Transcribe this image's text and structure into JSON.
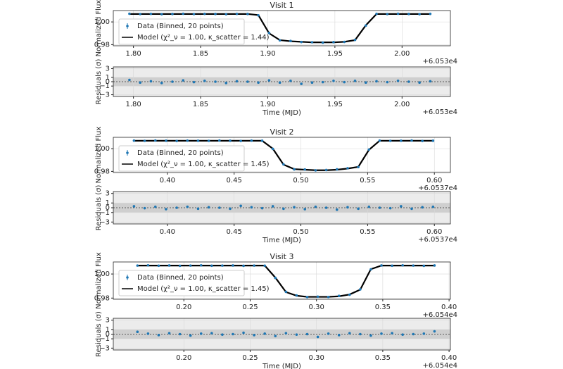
{
  "chart_data": [
    {
      "type": "line",
      "title": "Visit 1",
      "ylabel": "Normalized Flux",
      "x_offset_label": "+6.053e4",
      "legend": "upper left",
      "grid": true,
      "x": [
        1.797,
        1.805,
        1.813,
        1.821,
        1.829,
        1.837,
        1.845,
        1.853,
        1.861,
        1.869,
        1.877,
        1.885,
        1.893,
        1.901,
        1.909,
        1.917,
        1.925,
        1.933,
        1.941,
        1.949,
        1.957,
        1.965,
        1.973,
        1.981,
        1.989,
        1.997,
        2.005,
        2.013,
        2.021
      ],
      "series": [
        {
          "name": "Data (Binned, 20 points)",
          "color": "#1f77b4",
          "values": [
            1.0072,
            1.0069,
            1.0071,
            1.0068,
            1.007,
            1.0072,
            1.0069,
            1.0071,
            1.007,
            1.0068,
            1.0071,
            1.007,
            1.0058,
            0.9903,
            0.9838,
            0.9832,
            0.9823,
            0.9821,
            0.9818,
            0.9822,
            0.9824,
            0.9842,
            0.9968,
            1.0071,
            1.0069,
            1.0072,
            1.007,
            1.0068,
            1.0071
          ]
        },
        {
          "name": "Model (χ²_ν = 1.00, κ_scatter = 1.44)",
          "color": "#000000",
          "values": [
            1.007,
            1.007,
            1.007,
            1.007,
            1.007,
            1.007,
            1.007,
            1.007,
            1.007,
            1.007,
            1.007,
            1.007,
            1.006,
            0.99,
            0.984,
            0.983,
            0.9825,
            0.982,
            0.982,
            0.982,
            0.9825,
            0.984,
            0.997,
            1.007,
            1.007,
            1.007,
            1.007,
            1.007,
            1.007
          ]
        }
      ],
      "xlim": [
        1.785,
        2.036
      ],
      "xticks": [
        {
          "value": 1.8,
          "label": "1.80"
        },
        {
          "value": 1.85,
          "label": "1.85"
        },
        {
          "value": 1.9,
          "label": "1.90"
        },
        {
          "value": 1.95,
          "label": "1.95"
        },
        {
          "value": 2.0,
          "label": "2.00"
        }
      ],
      "ylim": [
        0.979,
        1.01
      ],
      "yticks": [
        {
          "value": 0.98,
          "label": "0.98"
        },
        {
          "value": 1.0,
          "label": "1.00"
        }
      ]
    },
    {
      "type": "scatter",
      "xlabel": "Time (MJD)",
      "ylabel": "Residuals (σ)",
      "x_offset_label": "+6.053e4",
      "color": "#1f77b4",
      "band": [
        -1,
        1
      ],
      "reference_line": 0,
      "grid": true,
      "x": [
        1.797,
        1.805,
        1.813,
        1.821,
        1.829,
        1.837,
        1.845,
        1.853,
        1.861,
        1.869,
        1.877,
        1.885,
        1.893,
        1.901,
        1.909,
        1.917,
        1.925,
        1.933,
        1.941,
        1.949,
        1.957,
        1.965,
        1.973,
        1.981,
        1.989,
        1.997,
        2.005,
        2.013,
        2.021
      ],
      "values": [
        0.4,
        -0.2,
        0.1,
        -0.3,
        0.0,
        0.3,
        -0.1,
        0.2,
        0.0,
        -0.3,
        0.1,
        0.0,
        -0.2,
        0.3,
        -0.2,
        0.2,
        -0.5,
        -0.2,
        -0.1,
        0.2,
        -0.1,
        0.2,
        -0.2,
        0.1,
        -0.1,
        0.2,
        0.0,
        -0.2,
        0.1
      ],
      "xlim": [
        1.785,
        2.036
      ],
      "xticks": [
        {
          "value": 1.8,
          "label": "1.80"
        },
        {
          "value": 1.85,
          "label": "1.85"
        },
        {
          "value": 1.9,
          "label": "1.90"
        },
        {
          "value": 1.95,
          "label": "1.95"
        },
        {
          "value": 2.0,
          "label": "2.00"
        }
      ],
      "ylim": [
        -3.4,
        3.4
      ],
      "yticks": [
        {
          "value": -3,
          "label": "−3"
        },
        {
          "value": -1,
          "label": "−1"
        },
        0,
        1,
        3
      ]
    },
    {
      "type": "line",
      "title": "Visit 2",
      "ylabel": "Normalized Flux",
      "x_offset_label": "+6.0537e4",
      "legend": "upper left",
      "grid": true,
      "x": [
        0.375,
        0.383,
        0.391,
        0.399,
        0.407,
        0.415,
        0.423,
        0.431,
        0.439,
        0.447,
        0.455,
        0.463,
        0.471,
        0.479,
        0.487,
        0.495,
        0.503,
        0.511,
        0.519,
        0.527,
        0.535,
        0.543,
        0.551,
        0.559,
        0.567,
        0.575,
        0.583,
        0.591,
        0.599
      ],
      "series": [
        {
          "name": "Data (Binned, 20 points)",
          "color": "#1f77b4",
          "values": [
            1.0071,
            1.0069,
            1.0072,
            1.007,
            1.0068,
            1.0071,
            1.007,
            1.0069,
            1.0072,
            1.007,
            1.0068,
            1.0071,
            1.007,
            0.9998,
            0.9862,
            0.9818,
            0.9817,
            0.9809,
            0.9812,
            0.9818,
            0.9828,
            0.9838,
            0.9992,
            1.0071,
            1.0069,
            1.007,
            1.0072,
            1.0068,
            1.007
          ]
        },
        {
          "name": "Model (χ²_ν = 1.00, κ_scatter = 1.45)",
          "color": "#000000",
          "values": [
            1.007,
            1.007,
            1.007,
            1.007,
            1.007,
            1.007,
            1.007,
            1.007,
            1.007,
            1.007,
            1.007,
            1.007,
            1.007,
            1.0,
            0.986,
            0.982,
            0.9815,
            0.981,
            0.981,
            0.9815,
            0.9825,
            0.984,
            0.999,
            1.007,
            1.007,
            1.007,
            1.007,
            1.007,
            1.007
          ]
        }
      ],
      "xlim": [
        0.3595,
        0.612
      ],
      "xticks": [
        {
          "value": 0.4,
          "label": "0.40"
        },
        {
          "value": 0.45,
          "label": "0.45"
        },
        {
          "value": 0.5,
          "label": "0.50"
        },
        {
          "value": 0.55,
          "label": "0.55"
        },
        {
          "value": 0.6,
          "label": "0.60"
        }
      ],
      "ylim": [
        0.979,
        1.01
      ],
      "yticks": [
        {
          "value": 0.98,
          "label": "0.98"
        },
        {
          "value": 1.0,
          "label": "1.00"
        }
      ]
    },
    {
      "type": "scatter",
      "xlabel": "Time (MJD)",
      "ylabel": "Residuals (σ)",
      "x_offset_label": "+6.0537e4",
      "color": "#1f77b4",
      "band": [
        -1,
        1
      ],
      "reference_line": 0,
      "grid": true,
      "x": [
        0.375,
        0.383,
        0.391,
        0.399,
        0.407,
        0.415,
        0.423,
        0.431,
        0.439,
        0.447,
        0.455,
        0.463,
        0.471,
        0.479,
        0.487,
        0.495,
        0.503,
        0.511,
        0.519,
        0.527,
        0.535,
        0.543,
        0.551,
        0.559,
        0.567,
        0.575,
        0.583,
        0.591,
        0.599
      ],
      "values": [
        0.3,
        -0.1,
        0.2,
        -0.3,
        0.0,
        0.2,
        -0.2,
        0.1,
        0.0,
        -0.2,
        0.4,
        0.1,
        -0.1,
        0.3,
        -0.2,
        0.1,
        -0.3,
        0.2,
        0.0,
        -0.4,
        0.1,
        -0.2,
        0.2,
        0.0,
        -0.1,
        0.3,
        -0.2,
        0.1,
        0.2
      ],
      "xlim": [
        0.3595,
        0.612
      ],
      "xticks": [
        {
          "value": 0.4,
          "label": "0.40"
        },
        {
          "value": 0.45,
          "label": "0.45"
        },
        {
          "value": 0.5,
          "label": "0.50"
        },
        {
          "value": 0.55,
          "label": "0.55"
        },
        {
          "value": 0.6,
          "label": "0.60"
        }
      ],
      "ylim": [
        -3.4,
        3.4
      ],
      "yticks": [
        {
          "value": -3,
          "label": "−3"
        },
        {
          "value": -1,
          "label": "−1"
        },
        0,
        1,
        3
      ]
    },
    {
      "type": "line",
      "title": "Visit 3",
      "ylabel": "Normalized Flux",
      "x_offset_label": "+6.054e4",
      "legend": "upper left",
      "grid": true,
      "x": [
        0.165,
        0.173,
        0.181,
        0.189,
        0.197,
        0.205,
        0.213,
        0.221,
        0.229,
        0.237,
        0.245,
        0.253,
        0.261,
        0.269,
        0.277,
        0.285,
        0.293,
        0.301,
        0.309,
        0.317,
        0.325,
        0.333,
        0.341,
        0.349,
        0.357,
        0.365,
        0.373,
        0.381,
        0.389
      ],
      "series": [
        {
          "name": "Data (Binned, 20 points)",
          "color": "#1f77b4",
          "values": [
            1.007,
            1.0072,
            1.0069,
            1.0071,
            1.0068,
            1.007,
            1.0072,
            1.0069,
            1.007,
            1.0071,
            1.0068,
            1.007,
            1.0069,
            0.9968,
            0.9852,
            0.9822,
            0.9808,
            0.9812,
            0.9809,
            0.9818,
            0.9828,
            0.9872,
            1.0038,
            1.0071,
            1.0069,
            1.0072,
            1.007,
            1.0068,
            1.0071
          ]
        },
        {
          "name": "Model (χ²_ν = 1.00, κ_scatter = 1.45)",
          "color": "#000000",
          "values": [
            1.007,
            1.007,
            1.007,
            1.007,
            1.007,
            1.007,
            1.007,
            1.007,
            1.007,
            1.007,
            1.007,
            1.007,
            1.007,
            0.997,
            0.985,
            0.982,
            0.981,
            0.981,
            0.981,
            0.9815,
            0.983,
            0.987,
            1.004,
            1.007,
            1.007,
            1.007,
            1.007,
            1.007,
            1.007
          ]
        }
      ],
      "xlim": [
        0.1468,
        0.401
      ],
      "xticks": [
        {
          "value": 0.2,
          "label": "0.20"
        },
        {
          "value": 0.25,
          "label": "0.25"
        },
        {
          "value": 0.3,
          "label": "0.30"
        },
        {
          "value": 0.35,
          "label": "0.35"
        },
        {
          "value": 0.4,
          "label": "0.40"
        }
      ],
      "ylim": [
        0.979,
        1.01
      ],
      "yticks": [
        {
          "value": 0.98,
          "label": "0.98"
        },
        {
          "value": 1.0,
          "label": "1.00"
        }
      ]
    },
    {
      "type": "scatter",
      "xlabel": "Time (MJD)",
      "ylabel": "Residuals (σ)",
      "x_offset_label": "+6.054e4",
      "color": "#1f77b4",
      "band": [
        -1,
        1
      ],
      "reference_line": 0,
      "grid": true,
      "x": [
        0.165,
        0.173,
        0.181,
        0.189,
        0.197,
        0.205,
        0.213,
        0.221,
        0.229,
        0.237,
        0.245,
        0.253,
        0.261,
        0.269,
        0.277,
        0.285,
        0.293,
        0.301,
        0.309,
        0.317,
        0.325,
        0.333,
        0.341,
        0.349,
        0.357,
        0.365,
        0.373,
        0.381,
        0.389
      ],
      "values": [
        0.5,
        0.1,
        -0.2,
        0.2,
        0.0,
        -0.3,
        0.1,
        0.2,
        -0.1,
        0.0,
        0.3,
        -0.2,
        0.1,
        -0.4,
        0.2,
        -0.1,
        0.0,
        -0.6,
        0.1,
        -0.2,
        0.2,
        0.0,
        -0.3,
        0.1,
        0.2,
        -0.1,
        0.0,
        0.1,
        0.6
      ],
      "xlim": [
        0.1468,
        0.401
      ],
      "xticks": [
        {
          "value": 0.2,
          "label": "0.20"
        },
        {
          "value": 0.25,
          "label": "0.25"
        },
        {
          "value": 0.3,
          "label": "0.30"
        },
        {
          "value": 0.35,
          "label": "0.35"
        },
        {
          "value": 0.4,
          "label": "0.40"
        }
      ],
      "ylim": [
        -3.4,
        3.4
      ],
      "yticks": [
        {
          "value": -3,
          "label": "−3"
        },
        {
          "value": -1,
          "label": "−1"
        },
        0,
        1,
        3
      ]
    }
  ]
}
